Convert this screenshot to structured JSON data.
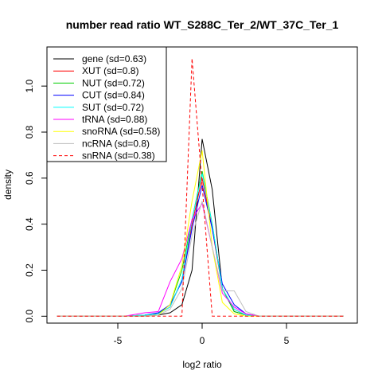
{
  "chart_data": {
    "type": "line",
    "title": "number read ratio WT_S288C_Ter_2/WT_37C_Ter_1",
    "xlabel": "log2 ratio",
    "ylabel": "density",
    "xlim": [
      -9.2,
      9.2
    ],
    "ylim": [
      -0.03,
      1.17
    ],
    "xticks": [
      -5,
      0,
      5
    ],
    "xtick_labels": [
      "-5",
      "0",
      "5"
    ],
    "yticks": [
      0.0,
      0.2,
      0.4,
      0.6,
      0.8,
      1.0
    ],
    "ytick_labels": [
      "0.0",
      "0.2",
      "0.4",
      "0.6",
      "0.8",
      "1.0"
    ],
    "grid": false,
    "legend_position": "top-left",
    "series": [
      {
        "name": "gene (sd=0.63)",
        "color": "#000000",
        "dash": "solid",
        "x": [
          -8.6,
          -4.6,
          -3.4,
          -2.6,
          -1.9,
          -1.2,
          -0.6,
          0.0,
          0.6,
          1.2,
          1.9,
          2.6,
          3.4,
          8.4
        ],
        "y": [
          0,
          0,
          0,
          0.005,
          0.015,
          0.05,
          0.2,
          0.77,
          0.55,
          0.12,
          0.02,
          0.005,
          0,
          0
        ]
      },
      {
        "name": "XUT (sd=0.8)",
        "color": "#ff0000",
        "dash": "solid",
        "x": [
          -8.6,
          -4.6,
          -3.4,
          -2.6,
          -1.9,
          -1.2,
          -0.6,
          0.0,
          0.6,
          1.2,
          1.9,
          2.6,
          3.4,
          8.4
        ],
        "y": [
          0,
          0,
          0.005,
          0.01,
          0.04,
          0.16,
          0.4,
          0.6,
          0.38,
          0.12,
          0.03,
          0.005,
          0,
          0
        ]
      },
      {
        "name": "NUT (sd=0.72)",
        "color": "#00cd00",
        "dash": "solid",
        "x": [
          -8.6,
          -4.6,
          -3.4,
          -2.6,
          -1.9,
          -1.2,
          -0.6,
          0.0,
          0.6,
          1.2,
          1.9,
          2.6,
          3.4,
          8.4
        ],
        "y": [
          0,
          0,
          0.005,
          0.01,
          0.05,
          0.2,
          0.42,
          0.63,
          0.4,
          0.12,
          0.02,
          0.005,
          0,
          0
        ]
      },
      {
        "name": "CUT (sd=0.84)",
        "color": "#0000ff",
        "dash": "solid",
        "x": [
          -8.6,
          -4.6,
          -3.4,
          -2.6,
          -1.9,
          -1.2,
          -0.6,
          0.0,
          0.6,
          1.2,
          1.9,
          2.6,
          3.4,
          8.4
        ],
        "y": [
          0,
          0,
          0.005,
          0.015,
          0.05,
          0.15,
          0.38,
          0.57,
          0.38,
          0.14,
          0.05,
          0.01,
          0,
          0
        ]
      },
      {
        "name": "SUT (sd=0.72)",
        "color": "#00ffff",
        "dash": "solid",
        "x": [
          -8.6,
          -4.6,
          -3.4,
          -2.6,
          -1.9,
          -1.2,
          -0.6,
          0.0,
          0.6,
          1.2,
          1.9,
          2.6,
          3.4,
          8.4
        ],
        "y": [
          0,
          0,
          0.005,
          0.01,
          0.04,
          0.16,
          0.42,
          0.62,
          0.4,
          0.12,
          0.03,
          0.005,
          0,
          0
        ]
      },
      {
        "name": "tRNA (sd=0.88)",
        "color": "#ff00ff",
        "dash": "solid",
        "x": [
          -8.6,
          -4.6,
          -3.4,
          -2.6,
          -1.9,
          -1.2,
          -0.6,
          0.0,
          0.6,
          1.2,
          1.9,
          2.6,
          3.4,
          8.4
        ],
        "y": [
          0,
          0,
          0.015,
          0.02,
          0.15,
          0.25,
          0.42,
          0.49,
          0.3,
          0.1,
          0.04,
          0.01,
          0,
          0
        ]
      },
      {
        "name": "snoRNA (sd=0.58)",
        "color": "#ffff00",
        "dash": "solid",
        "x": [
          -8.6,
          -4.6,
          -3.4,
          -2.6,
          -1.9,
          -1.2,
          -0.6,
          0.0,
          0.6,
          1.2,
          1.9,
          2.6,
          3.4,
          8.4
        ],
        "y": [
          0,
          0,
          0,
          0.005,
          0.05,
          0.22,
          0.5,
          0.72,
          0.3,
          0.06,
          0.01,
          0,
          0,
          0
        ]
      },
      {
        "name": "ncRNA (sd=0.8)",
        "color": "#bebebe",
        "dash": "solid",
        "x": [
          -8.6,
          -4.6,
          -3.4,
          -2.6,
          -1.9,
          -1.2,
          -0.6,
          0.0,
          0.6,
          1.2,
          1.9,
          2.6,
          3.4,
          8.4
        ],
        "y": [
          0,
          0,
          0,
          0.005,
          0.03,
          0.12,
          0.35,
          0.5,
          0.3,
          0.11,
          0.11,
          0.02,
          0,
          0
        ]
      },
      {
        "name": "snRNA (sd=0.38)",
        "color": "#ff0000",
        "dash": "dashed",
        "x": [
          -8.6,
          -1.2,
          -0.6,
          0.0,
          0.6,
          8.4
        ],
        "y": [
          0,
          0,
          1.12,
          0.57,
          0,
          0
        ]
      }
    ]
  }
}
